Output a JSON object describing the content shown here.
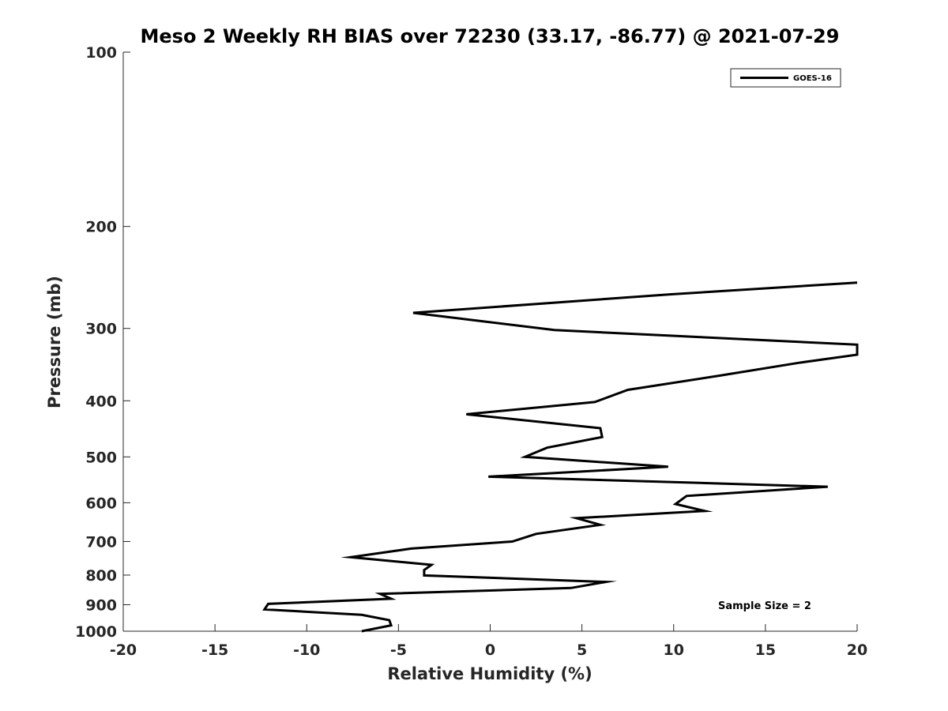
{
  "chart_data": {
    "type": "line",
    "title": "Meso 2 Weekly RH BIAS over 72230 (33.17, -86.77) @ 2021-07-29",
    "xlabel": "Relative Humidity (%)",
    "ylabel": "Pressure (mb)",
    "xlim": [
      -20,
      20
    ],
    "ylim": [
      100,
      1000
    ],
    "y_scale": "log",
    "y_reversed": true,
    "x_ticks": [
      -20,
      -15,
      -10,
      -5,
      0,
      5,
      10,
      15,
      20
    ],
    "y_ticks": [
      100,
      200,
      300,
      400,
      500,
      600,
      700,
      800,
      900,
      1000
    ],
    "grid": false,
    "legend_position": "top-right",
    "series": [
      {
        "name": "GOES-16",
        "color": "#000000",
        "points": [
          {
            "rh": 20.0,
            "p": 250
          },
          {
            "rh": 9.8,
            "p": 262
          },
          {
            "rh": -4.2,
            "p": 282
          },
          {
            "rh": 3.5,
            "p": 302
          },
          {
            "rh": 20.0,
            "p": 320
          },
          {
            "rh": 20.0,
            "p": 333
          },
          {
            "rh": 16.8,
            "p": 344
          },
          {
            "rh": 12.5,
            "p": 362
          },
          {
            "rh": 7.5,
            "p": 383
          },
          {
            "rh": 5.7,
            "p": 402
          },
          {
            "rh": -1.3,
            "p": 422
          },
          {
            "rh": 6.0,
            "p": 446
          },
          {
            "rh": 6.1,
            "p": 462
          },
          {
            "rh": 3.1,
            "p": 482
          },
          {
            "rh": 1.9,
            "p": 500
          },
          {
            "rh": 9.7,
            "p": 520
          },
          {
            "rh": -0.1,
            "p": 541
          },
          {
            "rh": 18.4,
            "p": 563
          },
          {
            "rh": 10.7,
            "p": 584
          },
          {
            "rh": 10.1,
            "p": 603
          },
          {
            "rh": 11.7,
            "p": 620
          },
          {
            "rh": 4.7,
            "p": 638
          },
          {
            "rh": 6.0,
            "p": 655
          },
          {
            "rh": 2.5,
            "p": 679
          },
          {
            "rh": 1.2,
            "p": 700
          },
          {
            "rh": -4.3,
            "p": 720
          },
          {
            "rh": -7.6,
            "p": 745
          },
          {
            "rh": -3.2,
            "p": 768
          },
          {
            "rh": -3.6,
            "p": 784
          },
          {
            "rh": -3.6,
            "p": 801
          },
          {
            "rh": 6.3,
            "p": 822
          },
          {
            "rh": 4.4,
            "p": 842
          },
          {
            "rh": -6.0,
            "p": 862
          },
          {
            "rh": -5.4,
            "p": 879
          },
          {
            "rh": -12.1,
            "p": 897
          },
          {
            "rh": -12.3,
            "p": 917
          },
          {
            "rh": -7.0,
            "p": 937
          },
          {
            "rh": -5.5,
            "p": 957
          },
          {
            "rh": -5.4,
            "p": 977
          },
          {
            "rh": -7.0,
            "p": 1000
          }
        ]
      }
    ],
    "annotations": [
      "Sample Size = 2"
    ]
  }
}
